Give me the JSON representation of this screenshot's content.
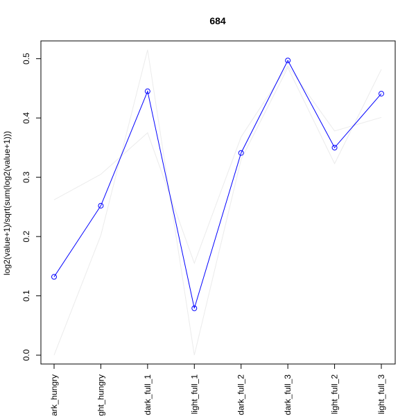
{
  "chart_data": {
    "type": "line",
    "title": "684",
    "xlabel": "",
    "ylabel": "log2(value+1)/sqrt(sum(log2(value+1)))",
    "categories": [
      "dark_hungry",
      "light_hungry",
      "dark_full_1",
      "light_full_1",
      "dark_full_2",
      "dark_full_3",
      "light_full_2",
      "light_full_3"
    ],
    "ylim": [
      -0.015,
      0.53
    ],
    "yticks": [
      0.0,
      0.1,
      0.2,
      0.3,
      0.4,
      0.5
    ],
    "ytick_labels": [
      "0.0",
      "0.1",
      "0.2",
      "0.3",
      "0.4",
      "0.5"
    ],
    "grid": false,
    "main_series": {
      "values": [
        0.132,
        0.252,
        0.445,
        0.079,
        0.341,
        0.497,
        0.35,
        0.441
      ],
      "color": "#0000ff",
      "marker": "open-circle"
    },
    "background_series": [
      {
        "values": [
          0.262,
          0.305,
          0.375,
          0.155,
          0.368,
          0.488,
          0.378,
          0.401
        ],
        "color": "#ebebeb"
      },
      {
        "values": [
          0.0,
          0.202,
          0.515,
          0.0,
          0.33,
          0.485,
          0.323,
          0.482
        ],
        "color": "#ebebeb"
      }
    ]
  }
}
